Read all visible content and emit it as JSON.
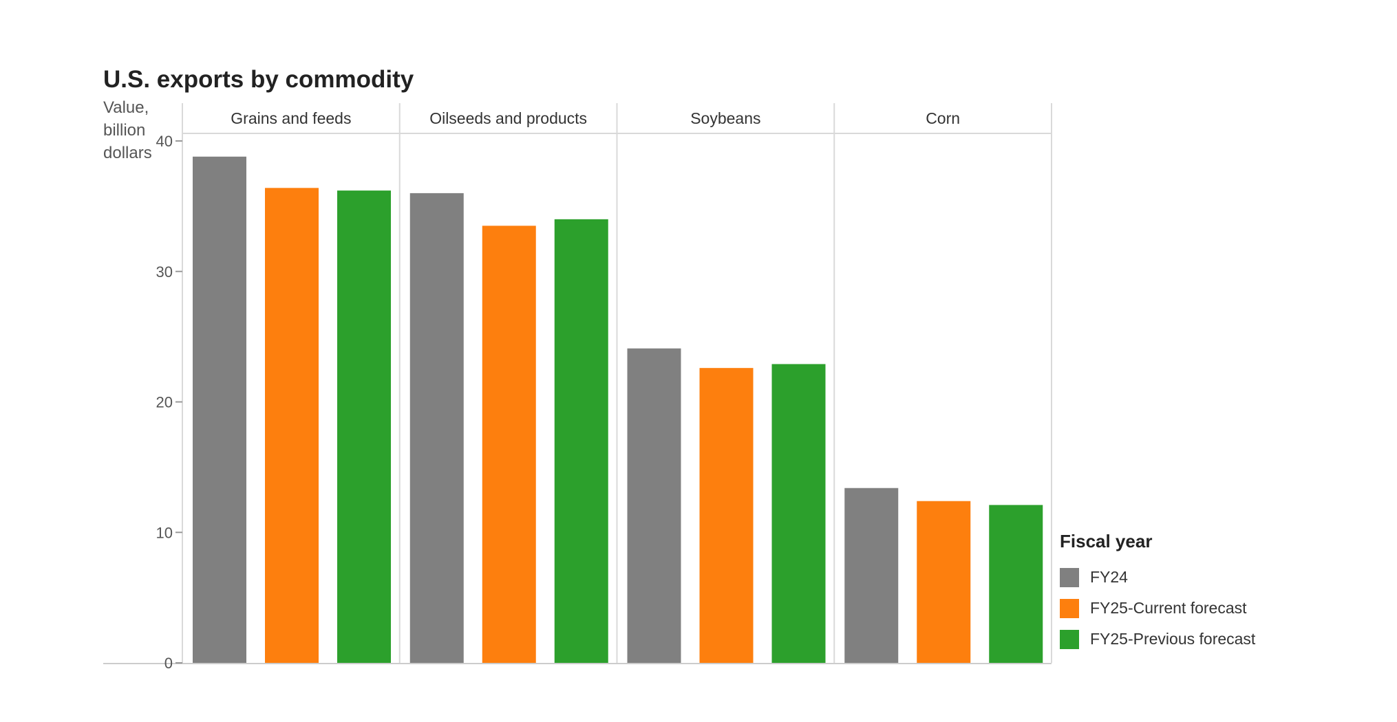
{
  "chart_data": {
    "type": "bar",
    "title": "U.S. exports by commodity",
    "ylabel": "Value, billion dollars",
    "xlabel": "",
    "ylim": [
      0,
      40
    ],
    "yticks": [
      0,
      10,
      20,
      30,
      40
    ],
    "grid": false,
    "legend_title": "Fiscal year",
    "legend_position": "bottom-right",
    "categories": [
      "Grains and feeds",
      "Oilseeds and products",
      "Soybeans",
      "Corn"
    ],
    "series": [
      {
        "name": "FY24",
        "color": "#808080",
        "values": [
          38.8,
          36.0,
          24.1,
          13.4
        ]
      },
      {
        "name": "FY25-Current forecast",
        "color": "#fd7f0e",
        "values": [
          36.4,
          33.5,
          22.6,
          12.4
        ]
      },
      {
        "name": "FY25-Previous forecast",
        "color": "#2ca02c",
        "values": [
          36.2,
          34.0,
          22.9,
          12.1
        ]
      }
    ]
  }
}
